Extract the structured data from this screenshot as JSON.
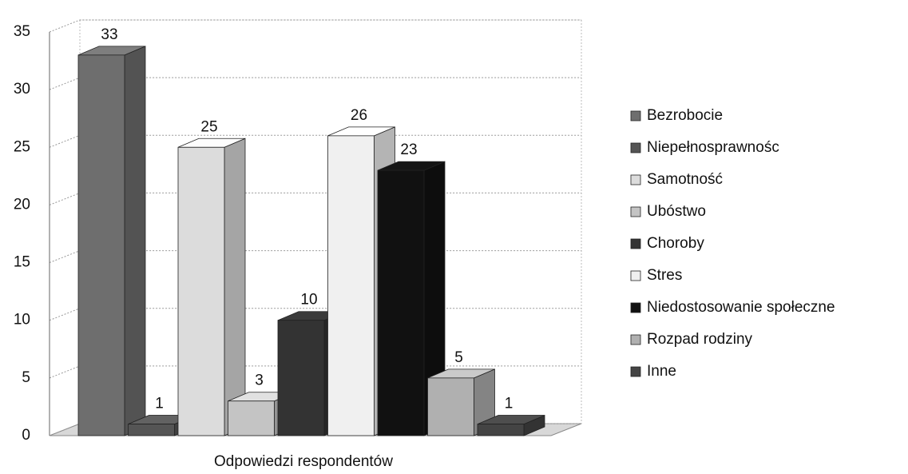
{
  "chart_data": {
    "type": "bar3d",
    "categories": [
      "Odpowiedzi respondentów"
    ],
    "series": [
      {
        "name": "Bezrobocie",
        "color": "#6e6e6e",
        "values": [
          33
        ]
      },
      {
        "name": "Niepełnosprawnośc",
        "color": "#555555",
        "values": [
          1
        ]
      },
      {
        "name": "Samotność",
        "color": "#dcdcdc",
        "values": [
          25
        ]
      },
      {
        "name": "Ubóstwo",
        "color": "#c4c4c4",
        "values": [
          3
        ]
      },
      {
        "name": "Choroby",
        "color": "#333333",
        "values": [
          10
        ]
      },
      {
        "name": "Stres",
        "color": "#f0f0f0",
        "values": [
          26
        ]
      },
      {
        "name": "Niedostosowanie społeczne",
        "color": "#111111",
        "values": [
          23
        ]
      },
      {
        "name": "Rozpad rodziny",
        "color": "#b0b0b0",
        "values": [
          5
        ]
      },
      {
        "name": "Inne",
        "color": "#444444",
        "values": [
          1
        ]
      }
    ],
    "ylim": [
      0,
      35
    ],
    "yticks": [
      0,
      5,
      10,
      15,
      20,
      25,
      30,
      35
    ],
    "grid": true,
    "legend": "right"
  }
}
